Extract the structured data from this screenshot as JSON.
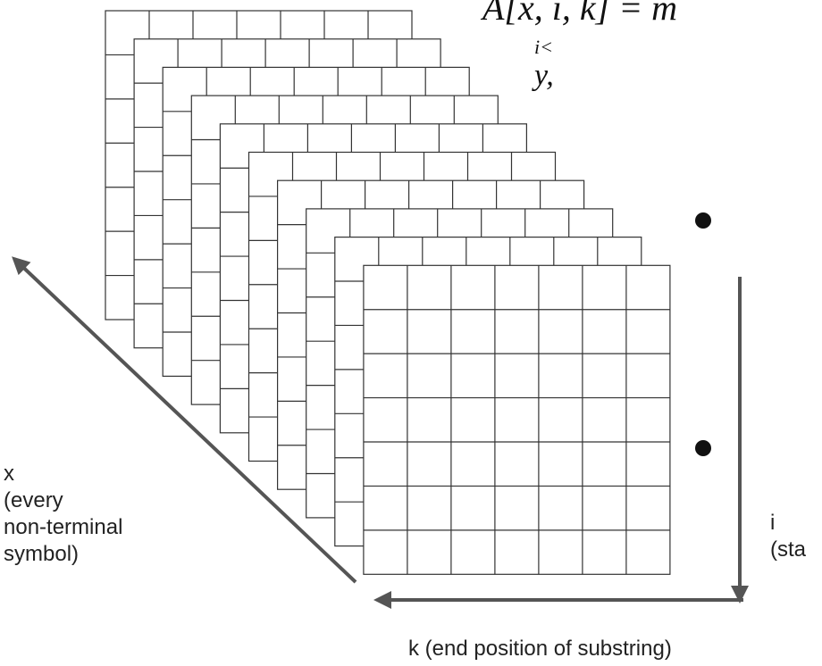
{
  "formula": {
    "main": "A[x, i, k] = m",
    "sub1": "i<",
    "sub2": "y,"
  },
  "x_label": [
    "x",
    "(every",
    "non-terminal",
    "symbol)"
  ],
  "i_label": [
    "i",
    "(sta"
  ],
  "k_label": "k (end position of substring)"
}
